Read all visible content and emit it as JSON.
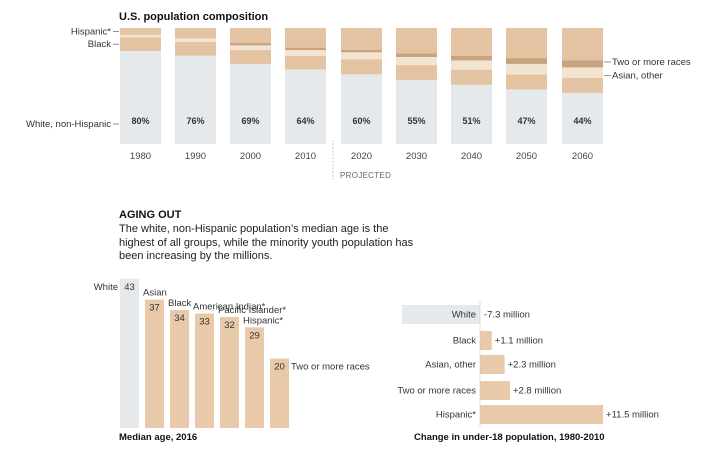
{
  "chart_data": [
    {
      "type": "bar",
      "title": "U.S. population composition",
      "categories": [
        "1980",
        "1990",
        "2000",
        "2010",
        "2020",
        "2030",
        "2040",
        "2050",
        "2060"
      ],
      "series": [
        {
          "name": "White, non-Hispanic",
          "values": [
            80,
            76,
            69,
            64,
            60,
            55,
            51,
            47,
            44
          ]
        },
        {
          "name": "Black",
          "values": [
            12,
            12,
            12,
            12,
            13,
            13,
            13,
            13,
            13
          ]
        },
        {
          "name": "Asian, other",
          "values": [
            2,
            3,
            4,
            5,
            6,
            7,
            8,
            9,
            9
          ]
        },
        {
          "name": "Hispanic*",
          "values": [
            6,
            9,
            13,
            17,
            19,
            22,
            24,
            26,
            28
          ]
        },
        {
          "name": "Two or more races",
          "values": [
            0,
            0,
            2,
            2,
            2,
            3,
            4,
            5,
            6
          ]
        }
      ],
      "value_labels": [
        "80%",
        "76%",
        "69%",
        "64%",
        "60%",
        "55%",
        "51%",
        "47%",
        "44%"
      ],
      "projected_label": "PROJECTED",
      "ylim": [
        0,
        100
      ]
    },
    {
      "type": "bar",
      "title": "Median age, 2016",
      "categories": [
        "White",
        "Asian",
        "Black",
        "American Indian*",
        "Pacific Islander*",
        "Hispanic*",
        "Two or more races"
      ],
      "values": [
        43,
        37,
        34,
        33,
        32,
        29,
        20
      ]
    },
    {
      "type": "bar",
      "title": "Change in under-18 population, 1980-2010",
      "categories": [
        "White",
        "Black",
        "Asian, other",
        "Two or more races",
        "Hispanic*"
      ],
      "values": [
        -7.3,
        1.1,
        2.3,
        2.8,
        11.5
      ],
      "value_labels": [
        "-7.3 million",
        "+1.1 million",
        "+2.3 million",
        "+2.8 million",
        "+11.5 million"
      ],
      "unit": "million"
    }
  ],
  "aging": {
    "heading": "AGING OUT",
    "description": "The white, non-Hispanic population’s median age is the highest of all groups, while the minority youth population has been increasing by the millions."
  },
  "colors": {
    "white": "#e6e9ec",
    "black": "#e4c3a3",
    "asian": "#f3e3d1",
    "hispanic": "#e4c3a3",
    "two_or_more": "#c9a27f",
    "minority_bar": "#e8c9a9",
    "divider": "#bbbbbb"
  }
}
